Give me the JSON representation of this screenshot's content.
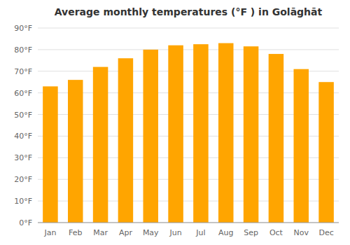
{
  "chart_data": {
    "type": "bar",
    "title": "Average monthly temperatures (°F ) in Golāghāt",
    "categories": [
      "Jan",
      "Feb",
      "Mar",
      "Apr",
      "May",
      "Jun",
      "Jul",
      "Aug",
      "Sep",
      "Oct",
      "Nov",
      "Dec"
    ],
    "values": [
      63,
      66,
      72,
      76,
      80,
      82,
      82.5,
      83,
      81.5,
      78,
      71,
      65
    ],
    "color": "#FFA500",
    "ylim": [
      0,
      90
    ],
    "yticks": [
      {
        "value": 0,
        "label": "0°F"
      },
      {
        "value": 10,
        "label": "10°F"
      },
      {
        "value": 20,
        "label": "20°F"
      },
      {
        "value": 30,
        "label": "30°F"
      },
      {
        "value": 40,
        "label": "40°F"
      },
      {
        "value": 50,
        "label": "50°F"
      },
      {
        "value": 60,
        "label": "60°F"
      },
      {
        "value": 70,
        "label": "70°F"
      },
      {
        "value": 80,
        "label": "80°F"
      },
      {
        "value": 90,
        "label": "90°F"
      }
    ],
    "grid": true
  }
}
